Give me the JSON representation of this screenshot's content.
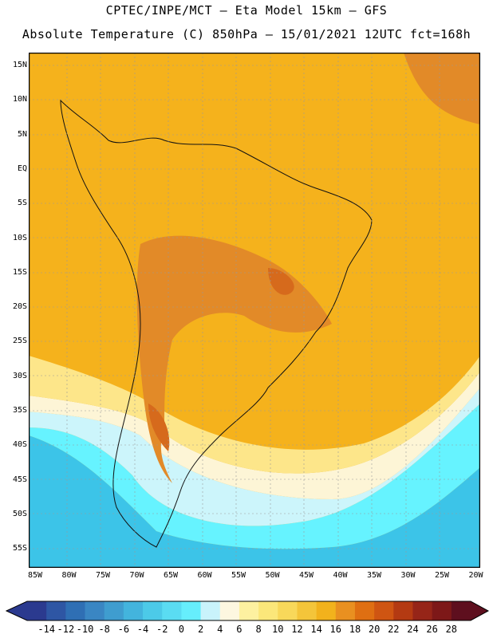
{
  "header": {
    "line1": "CPTEC/INPE/MCT –  Eta Model 15km – GFS",
    "line2": "Absolute Temperature (C) 850hPa – 15/01/2021 12UTC fct=168h"
  },
  "map": {
    "lat_labels": [
      "15N",
      "10N",
      "5N",
      "EQ",
      "5S",
      "10S",
      "15S",
      "20S",
      "25S",
      "30S",
      "35S",
      "40S",
      "45S",
      "50S",
      "55S"
    ],
    "lon_labels": [
      "85W",
      "80W",
      "75W",
      "70W",
      "65W",
      "60W",
      "55W",
      "50W",
      "45W",
      "40W",
      "35W",
      "30W",
      "25W",
      "20W"
    ],
    "colors": {
      "hot_orange": "#f0a020",
      "orange": "#f5b21c",
      "dark_orange": "#e28a28",
      "burnt": "#d66a1c",
      "light_yellow": "#fde68a",
      "pale": "#fdf5d6",
      "light_cyan": "#ccf5fb",
      "cyan": "#66f3ff",
      "blue": "#3cc4e8",
      "deep_blue": "#2a8fd0",
      "land_outline": "#111111"
    }
  },
  "colorbar": {
    "ticks": [
      "-14",
      "-12",
      "-10",
      "-8",
      "-6",
      "-4",
      "-2",
      "0",
      "2",
      "4",
      "6",
      "8",
      "10",
      "12",
      "14",
      "16",
      "18",
      "20",
      "22",
      "24",
      "26",
      "28"
    ],
    "colors": [
      "#2b3a8f",
      "#2e56a4",
      "#2f6fb4",
      "#3a86c3",
      "#3f9dcf",
      "#43b4dd",
      "#4ccae8",
      "#5adcf2",
      "#66eefc",
      "#c9f3fb",
      "#fdf7e0",
      "#fdf1a0",
      "#fbe77a",
      "#f8d85a",
      "#f4c53a",
      "#f2b21c",
      "#e99020",
      "#df6f12",
      "#cf5512",
      "#b43a12",
      "#962518",
      "#7d1818",
      "#5e0f1e"
    ]
  }
}
